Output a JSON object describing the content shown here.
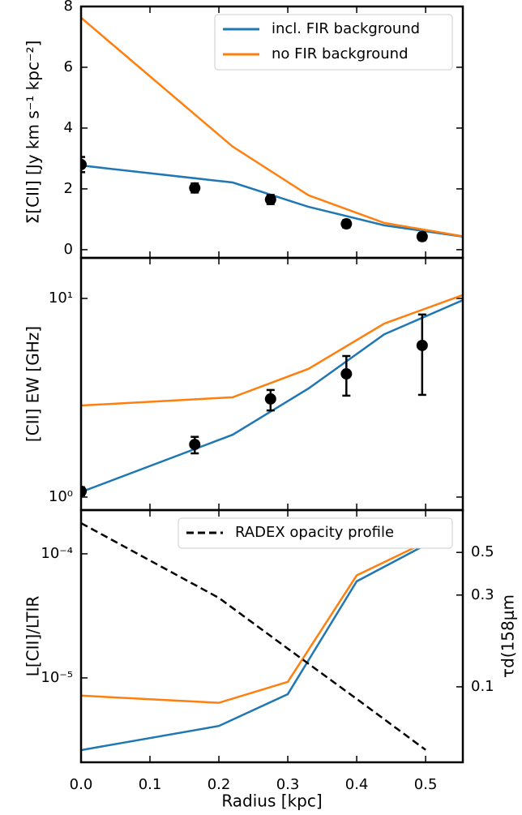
{
  "chart_data": [
    {
      "type": "line",
      "ylabel": "Σ[CII] [Jy km s⁻¹ kpc⁻²]",
      "xlim": [
        0,
        0.554
      ],
      "ylim": [
        -0.27,
        8
      ],
      "yticks": [
        0,
        2,
        4,
        6,
        8
      ],
      "log_y": false,
      "legend": "upper right",
      "series": [
        {
          "name": "incl. FIR background",
          "color": "#1f77b4",
          "x": [
            0,
            0.22,
            0.33,
            0.44,
            0.554
          ],
          "values": [
            2.77,
            2.21,
            1.41,
            0.8,
            0.43
          ]
        },
        {
          "name": "no FIR background",
          "color": "#ff7f0e",
          "x": [
            0,
            0.22,
            0.33,
            0.44,
            0.554
          ],
          "values": [
            7.63,
            3.39,
            1.79,
            0.88,
            0.44
          ]
        }
      ],
      "points": {
        "color": "#000000",
        "x": [
          0,
          0.165,
          0.275,
          0.385,
          0.495
        ],
        "values": [
          2.8,
          2.03,
          1.65,
          0.85,
          0.43
        ],
        "yerr_minus": [
          0.25,
          0.15,
          0.15,
          0.12,
          0.12
        ],
        "yerr_plus": [
          0.25,
          0.15,
          0.15,
          0.12,
          0.12
        ]
      }
    },
    {
      "type": "line",
      "ylabel": "[CII] EW [GHz]",
      "xlim": [
        0,
        0.554
      ],
      "ylim": [
        0.86,
        16
      ],
      "yticks": [
        {
          "value": 1,
          "label": "10⁰"
        },
        {
          "value": 10,
          "label": "10¹"
        }
      ],
      "log_y": true,
      "series": [
        {
          "color": "#1f77b4",
          "x": [
            0,
            0.22,
            0.33,
            0.44,
            0.554
          ],
          "values": [
            1.06,
            2.06,
            3.52,
            6.6,
            9.8
          ]
        },
        {
          "color": "#ff7f0e",
          "x": [
            0,
            0.22,
            0.33,
            0.44,
            0.554
          ],
          "values": [
            2.89,
            3.18,
            4.42,
            7.47,
            10.4
          ]
        }
      ],
      "points": {
        "color": "#000000",
        "x": [
          0,
          0.165,
          0.275,
          0.385,
          0.495
        ],
        "values": [
          1.07,
          1.84,
          3.12,
          4.17,
          5.8
        ],
        "yerr_minus": [
          0.05,
          0.18,
          0.39,
          0.93,
          2.53
        ],
        "yerr_plus": [
          0.05,
          0.17,
          0.34,
          0.96,
          2.5
        ]
      }
    },
    {
      "type": "line",
      "ylabel": "L[CII]/LTIR",
      "y2label": "τd(158μm",
      "xlabel": "Radius [kpc]",
      "xlim": [
        0,
        0.554
      ],
      "xticks": [
        {
          "value": 0,
          "label": "0.0"
        },
        {
          "value": 0.1,
          "label": "0.1"
        },
        {
          "value": 0.2,
          "label": "0.2"
        },
        {
          "value": 0.3,
          "label": "0.3"
        },
        {
          "value": 0.4,
          "label": "0.4"
        },
        {
          "value": 0.5,
          "label": "0.5"
        }
      ],
      "ylim": [
        2.09e-06,
        0.000225
      ],
      "yticks": [
        {
          "value": 0.0001,
          "label": "10⁻⁴"
        },
        {
          "value": 1e-05,
          "label": "10⁻⁵"
        }
      ],
      "log_y": true,
      "y2lim": [
        0.0405,
        0.83
      ],
      "y2ticks": [
        0.1,
        0.3,
        0.5
      ],
      "log_y2": true,
      "legend": "upper right",
      "series": [
        {
          "color": "#1f77b4",
          "x": [
            0,
            0.2,
            0.3,
            0.4,
            0.5
          ],
          "values": [
            2.62e-06,
            4.1e-06,
            7.4e-06,
            6e-05,
            0.000118
          ]
        },
        {
          "color": "#ff7f0e",
          "x": [
            0,
            0.2,
            0.3,
            0.4,
            0.5
          ],
          "values": [
            7.2e-06,
            6.3e-06,
            9.3e-06,
            6.7e-05,
            0.000124
          ]
        },
        {
          "name": "RADEX opacity profile",
          "color": "#000000",
          "dashed": true,
          "axis": "y2",
          "x": [
            0,
            0.2,
            0.3,
            0.4,
            0.5
          ],
          "values": [
            0.71,
            0.29,
            0.158,
            0.0865,
            0.047
          ]
        }
      ]
    }
  ]
}
